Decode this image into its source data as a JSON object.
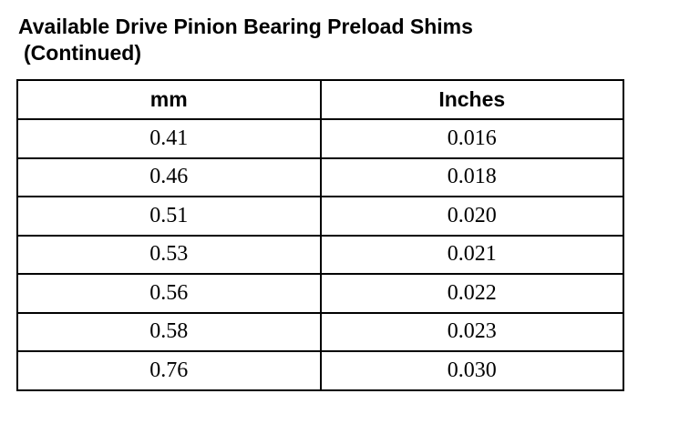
{
  "header": {
    "title": "Available Drive Pinion Bearing Preload Shims",
    "title_continued": "(Continued)"
  },
  "table": {
    "columns": [
      "mm",
      "Inches"
    ],
    "rows": [
      [
        "0.41",
        "0.016"
      ],
      [
        "0.46",
        "0.018"
      ],
      [
        "0.51",
        "0.020"
      ],
      [
        "0.53",
        "0.021"
      ],
      [
        "0.56",
        "0.022"
      ],
      [
        "0.58",
        "0.023"
      ],
      [
        "0.76",
        "0.030"
      ]
    ]
  }
}
